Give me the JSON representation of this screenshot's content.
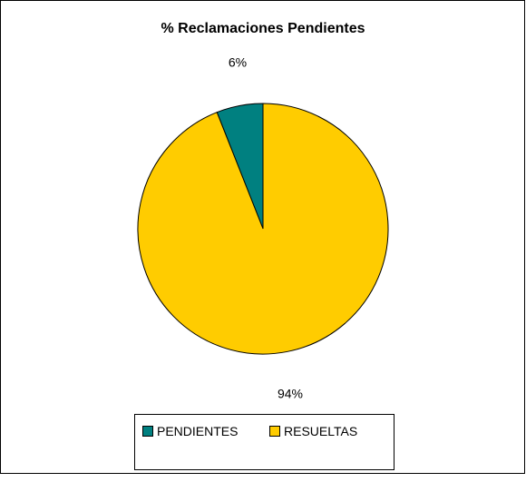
{
  "chart_data": {
    "type": "pie",
    "title": "% Reclamaciones Pendientes",
    "categories": [
      "PENDIENTES",
      "RESUELTAS"
    ],
    "values": [
      6,
      94
    ],
    "value_labels": [
      "6%",
      "94%"
    ],
    "colors": [
      "#008080",
      "#ffcc00"
    ],
    "legend": "bottom"
  }
}
